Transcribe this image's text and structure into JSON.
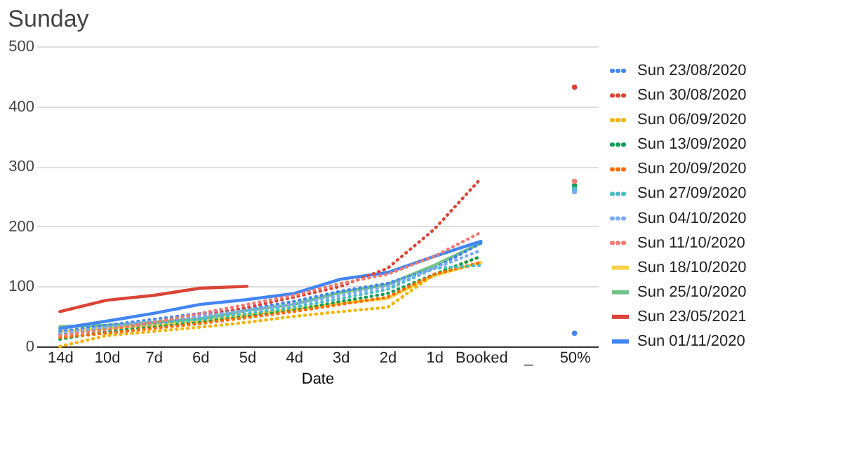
{
  "chart_data": {
    "type": "line",
    "title": "Sunday",
    "xlabel": "Date",
    "categories": [
      "14d",
      "10d",
      "7d",
      "6d",
      "5d",
      "4d",
      "3d",
      "2d",
      "1d",
      "Booked",
      "_",
      "50%"
    ],
    "ylim": [
      0,
      500
    ],
    "yticks": [
      0,
      100,
      200,
      300,
      400,
      500
    ],
    "grid": "y",
    "legend": "right",
    "marker": "none",
    "series": [
      {
        "name": "Sun 23/08/2020",
        "color": "#4285f4",
        "line_style": "dotted",
        "values": [
          25,
          35,
          45,
          55,
          62,
          75,
          92,
          105,
          130,
          172,
          null,
          22
        ]
      },
      {
        "name": "Sun 30/08/2020",
        "color": "#db4437",
        "line_style": "dotted",
        "values": [
          20,
          30,
          38,
          50,
          65,
          82,
          100,
          130,
          195,
          280,
          null,
          432
        ]
      },
      {
        "name": "Sun 06/09/2020",
        "color": "#f4b400",
        "line_style": "dotted",
        "values": [
          0,
          18,
          25,
          32,
          40,
          50,
          58,
          65,
          120,
          150,
          null,
          null
        ]
      },
      {
        "name": "Sun 13/09/2020",
        "color": "#0f9d58",
        "line_style": "dotted",
        "values": [
          12,
          25,
          32,
          40,
          50,
          60,
          75,
          88,
          120,
          150,
          null,
          268
        ]
      },
      {
        "name": "Sun 20/09/2020",
        "color": "#ff6d00",
        "line_style": "dotted",
        "values": [
          15,
          22,
          30,
          38,
          48,
          58,
          70,
          82,
          120,
          140,
          null,
          null
        ]
      },
      {
        "name": "Sun 27/09/2020",
        "color": "#46bdc6",
        "line_style": "dotted",
        "values": [
          20,
          30,
          38,
          45,
          55,
          65,
          80,
          95,
          130,
          135,
          null,
          262
        ]
      },
      {
        "name": "Sun 04/10/2020",
        "color": "#7baaf7",
        "line_style": "dotted",
        "values": [
          22,
          32,
          42,
          50,
          60,
          70,
          85,
          100,
          130,
          160,
          null,
          258
        ]
      },
      {
        "name": "Sun 11/10/2020",
        "color": "#f07b72",
        "line_style": "dotted",
        "values": [
          18,
          28,
          40,
          55,
          70,
          85,
          105,
          120,
          150,
          190,
          null,
          275
        ]
      },
      {
        "name": "Sun 18/10/2020",
        "color": "#fcd04f",
        "line_style": "solid",
        "values": [
          25,
          30,
          35,
          42,
          52,
          62,
          72,
          80,
          118,
          140,
          null,
          null
        ]
      },
      {
        "name": "Sun 25/10/2020",
        "color": "#71c287",
        "line_style": "solid",
        "values": [
          33,
          35,
          40,
          46,
          60,
          70,
          90,
          103,
          135,
          172,
          null,
          null
        ]
      },
      {
        "name": "Sun 23/05/2021",
        "color": "#db4437",
        "line_style": "solid",
        "values": [
          58,
          77,
          85,
          97,
          100,
          null,
          null,
          null,
          null,
          null,
          null,
          null
        ]
      },
      {
        "name": "Sun 01/11/2020",
        "color": "#4285f4",
        "line_style": "solid",
        "values": [
          30,
          42,
          55,
          70,
          78,
          88,
          112,
          123,
          150,
          175,
          null,
          null
        ]
      }
    ]
  }
}
